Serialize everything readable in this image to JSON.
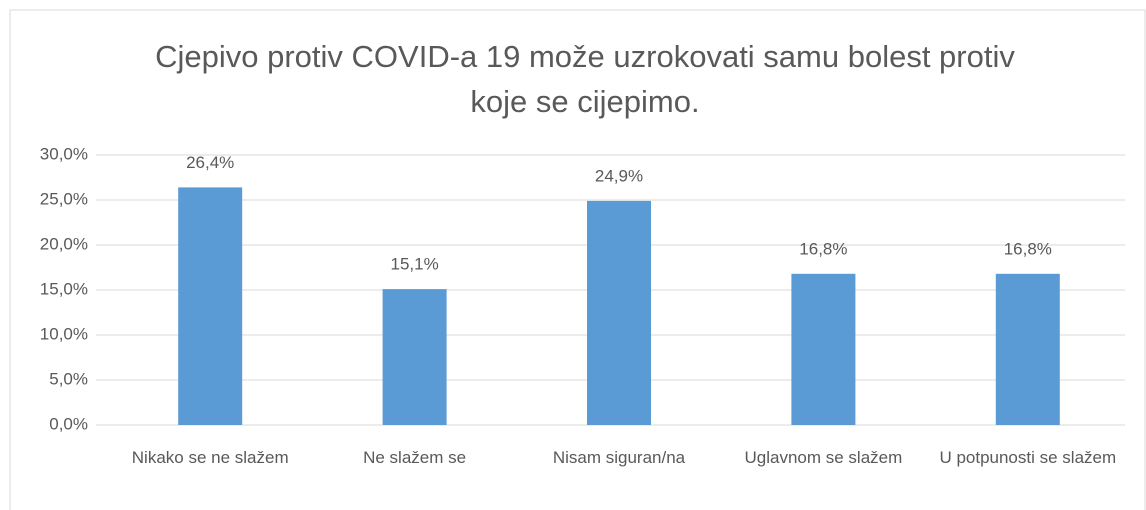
{
  "chart_data": {
    "type": "bar",
    "title": "Cjepivo protiv COVID-a 19 može uzrokovati samu bolest protiv koje se cijepimo.",
    "categories": [
      "Nikako se ne slažem",
      "Ne slažem se",
      "Nisam siguran/na",
      "Uglavnom se slažem",
      "U potpunosti se slažem"
    ],
    "values": [
      26.4,
      15.1,
      24.9,
      16.8,
      16.8
    ],
    "value_labels": [
      "26,4%",
      "15,1%",
      "24,9%",
      "16,8%",
      "16,8%"
    ],
    "color": "#5b9bd5",
    "ylim": [
      0,
      30
    ],
    "yticks": [
      {
        "value": 0,
        "label": "0,0%"
      },
      {
        "value": 5,
        "label": "5,0%"
      },
      {
        "value": 10,
        "label": "10,0%"
      },
      {
        "value": 15,
        "label": "15,0%"
      },
      {
        "value": 20,
        "label": "20,0%"
      },
      {
        "value": 25,
        "label": "25,0%"
      },
      {
        "value": 30,
        "label": "30,0%"
      }
    ],
    "grid": true
  }
}
